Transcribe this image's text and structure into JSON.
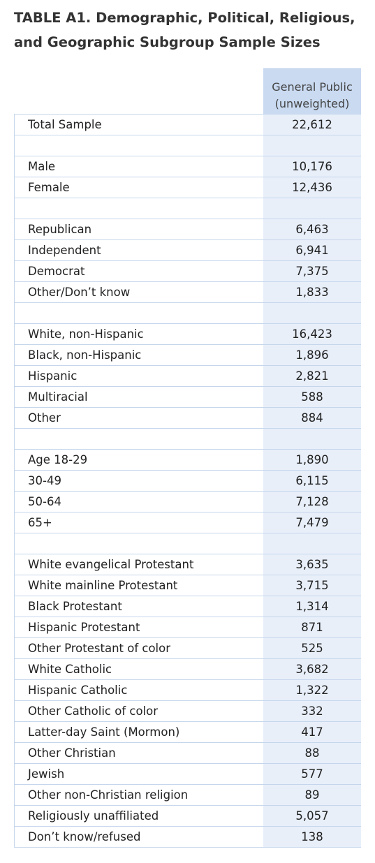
{
  "title": [
    "TABLE A1. Demographic, Political, Religious,",
    "and Geographic Subgroup Sample Sizes"
  ],
  "table": {
    "header": [
      "General Public",
      "(unweighted)"
    ],
    "groups": [
      [
        [
          "Total Sample",
          "22,612"
        ]
      ],
      [
        [
          "Male",
          "10,176"
        ],
        [
          "Female",
          "12,436"
        ]
      ],
      [
        [
          "Republican",
          "6,463"
        ],
        [
          "Independent",
          "6,941"
        ],
        [
          "Democrat",
          "7,375"
        ],
        [
          "Other/Don’t know",
          "1,833"
        ]
      ],
      [
        [
          "White, non-Hispanic",
          "16,423"
        ],
        [
          "Black, non-Hispanic",
          "1,896"
        ],
        [
          "Hispanic",
          "2,821"
        ],
        [
          "Multiracial",
          "588"
        ],
        [
          "Other",
          "884"
        ]
      ],
      [
        [
          "Age 18-29",
          "1,890"
        ],
        [
          "30-49",
          "6,115"
        ],
        [
          "50-64",
          "7,128"
        ],
        [
          "65+",
          "7,479"
        ]
      ],
      [
        [
          "White evangelical Protestant",
          "3,635"
        ],
        [
          "White mainline Protestant",
          "3,715"
        ],
        [
          "Black Protestant",
          "1,314"
        ],
        [
          "Hispanic Protestant",
          "871"
        ],
        [
          "Other Protestant of color",
          "525"
        ],
        [
          "White Catholic",
          "3,682"
        ],
        [
          "Hispanic Catholic",
          "1,322"
        ],
        [
          "Other Catholic of color",
          "332"
        ],
        [
          "Latter-day Saint (Mormon)",
          "417"
        ],
        [
          "Other Christian",
          "88"
        ],
        [
          "Jewish",
          "577"
        ],
        [
          "Other non-Christian religion",
          "89"
        ],
        [
          "Religiously unaffiliated",
          "5,057"
        ],
        [
          "Don’t know/refused",
          "138"
        ]
      ]
    ]
  }
}
